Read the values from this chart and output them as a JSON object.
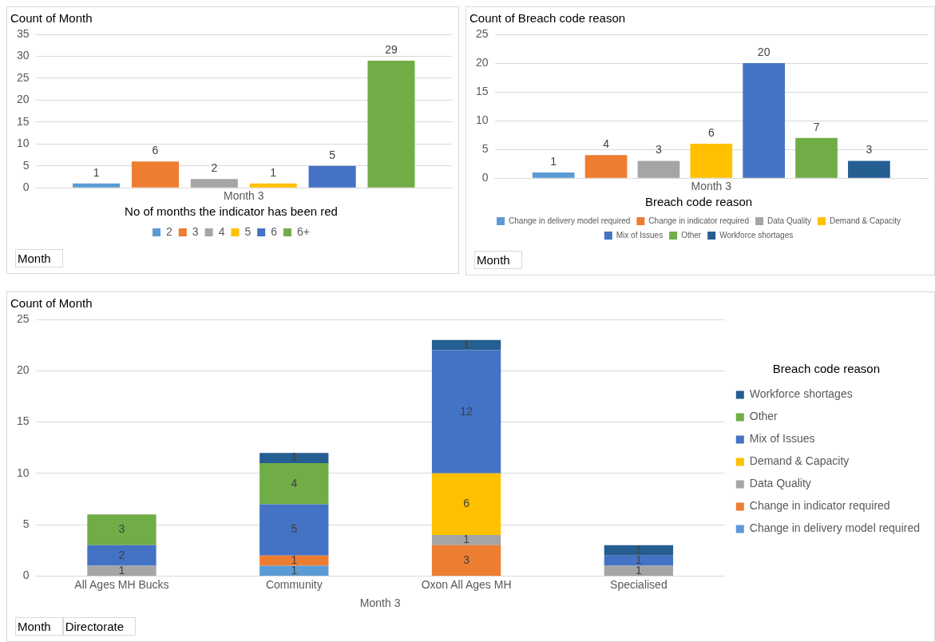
{
  "chart_data": [
    {
      "type": "bar",
      "title": "Count of Month",
      "categories": [
        "Month 3"
      ],
      "legend_title": "No of months the indicator has been red",
      "legend": "bottom",
      "grid": "y",
      "data_labels": true,
      "ylim": [
        0,
        35
      ],
      "yticks": [
        0,
        5,
        10,
        15,
        20,
        25,
        30,
        35
      ],
      "annotations": [
        "Month"
      ],
      "series": [
        {
          "name": "2",
          "color": "#5b9bd5",
          "values": [
            1
          ]
        },
        {
          "name": "3",
          "color": "#ed7d31",
          "values": [
            6
          ]
        },
        {
          "name": "4",
          "color": "#a5a5a5",
          "values": [
            2
          ]
        },
        {
          "name": "5",
          "color": "#ffc000",
          "values": [
            1
          ]
        },
        {
          "name": "6",
          "color": "#4472c4",
          "values": [
            5
          ]
        },
        {
          "name": "6+",
          "color": "#70ad47",
          "values": [
            29
          ]
        }
      ]
    },
    {
      "type": "bar",
      "title": "Count of Breach code reason",
      "categories": [
        "Month 3"
      ],
      "legend_title": "Breach code reason",
      "legend": "bottom",
      "grid": "y",
      "data_labels": true,
      "ylim": [
        0,
        25
      ],
      "yticks": [
        0,
        5,
        10,
        15,
        20,
        25
      ],
      "annotations": [
        "Month"
      ],
      "series": [
        {
          "name": "Change in delivery model required",
          "color": "#5b9bd5",
          "values": [
            1
          ]
        },
        {
          "name": "Change in indicator required",
          "color": "#ed7d31",
          "values": [
            4
          ]
        },
        {
          "name": "Data Quality",
          "color": "#a5a5a5",
          "values": [
            3
          ]
        },
        {
          "name": "Demand & Capacity",
          "color": "#ffc000",
          "values": [
            6
          ]
        },
        {
          "name": "Mix of Issues",
          "color": "#4472c4",
          "values": [
            20
          ]
        },
        {
          "name": "Other",
          "color": "#70ad47",
          "values": [
            7
          ]
        },
        {
          "name": "Workforce shortages",
          "color": "#255e91",
          "values": [
            3
          ]
        }
      ]
    },
    {
      "type": "bar",
      "title": "Count of Month",
      "stacked": true,
      "categories": [
        "All Ages MH Bucks",
        "Community",
        "Oxon All Ages MH",
        "Specialised"
      ],
      "xlabel": "Month 3",
      "legend_title": "Breach code reason",
      "legend": "right",
      "grid": "y",
      "data_labels": true,
      "ylim": [
        0,
        25
      ],
      "yticks": [
        0,
        5,
        10,
        15,
        20,
        25
      ],
      "annotations": [
        "Month",
        "Directorate"
      ],
      "series": [
        {
          "name": "Change in delivery model required",
          "color": "#5b9bd5",
          "values": [
            null,
            1,
            null,
            null
          ]
        },
        {
          "name": "Change in indicator required",
          "color": "#ed7d31",
          "values": [
            null,
            1,
            3,
            null
          ]
        },
        {
          "name": "Data Quality",
          "color": "#a5a5a5",
          "values": [
            1,
            null,
            1,
            1
          ]
        },
        {
          "name": "Demand & Capacity",
          "color": "#ffc000",
          "values": [
            null,
            null,
            6,
            null
          ]
        },
        {
          "name": "Mix of Issues",
          "color": "#4472c4",
          "values": [
            2,
            5,
            12,
            1
          ]
        },
        {
          "name": "Other",
          "color": "#70ad47",
          "values": [
            3,
            4,
            null,
            null
          ]
        },
        {
          "name": "Workforce shortages",
          "color": "#255e91",
          "values": [
            null,
            1,
            1,
            1
          ]
        }
      ]
    }
  ]
}
